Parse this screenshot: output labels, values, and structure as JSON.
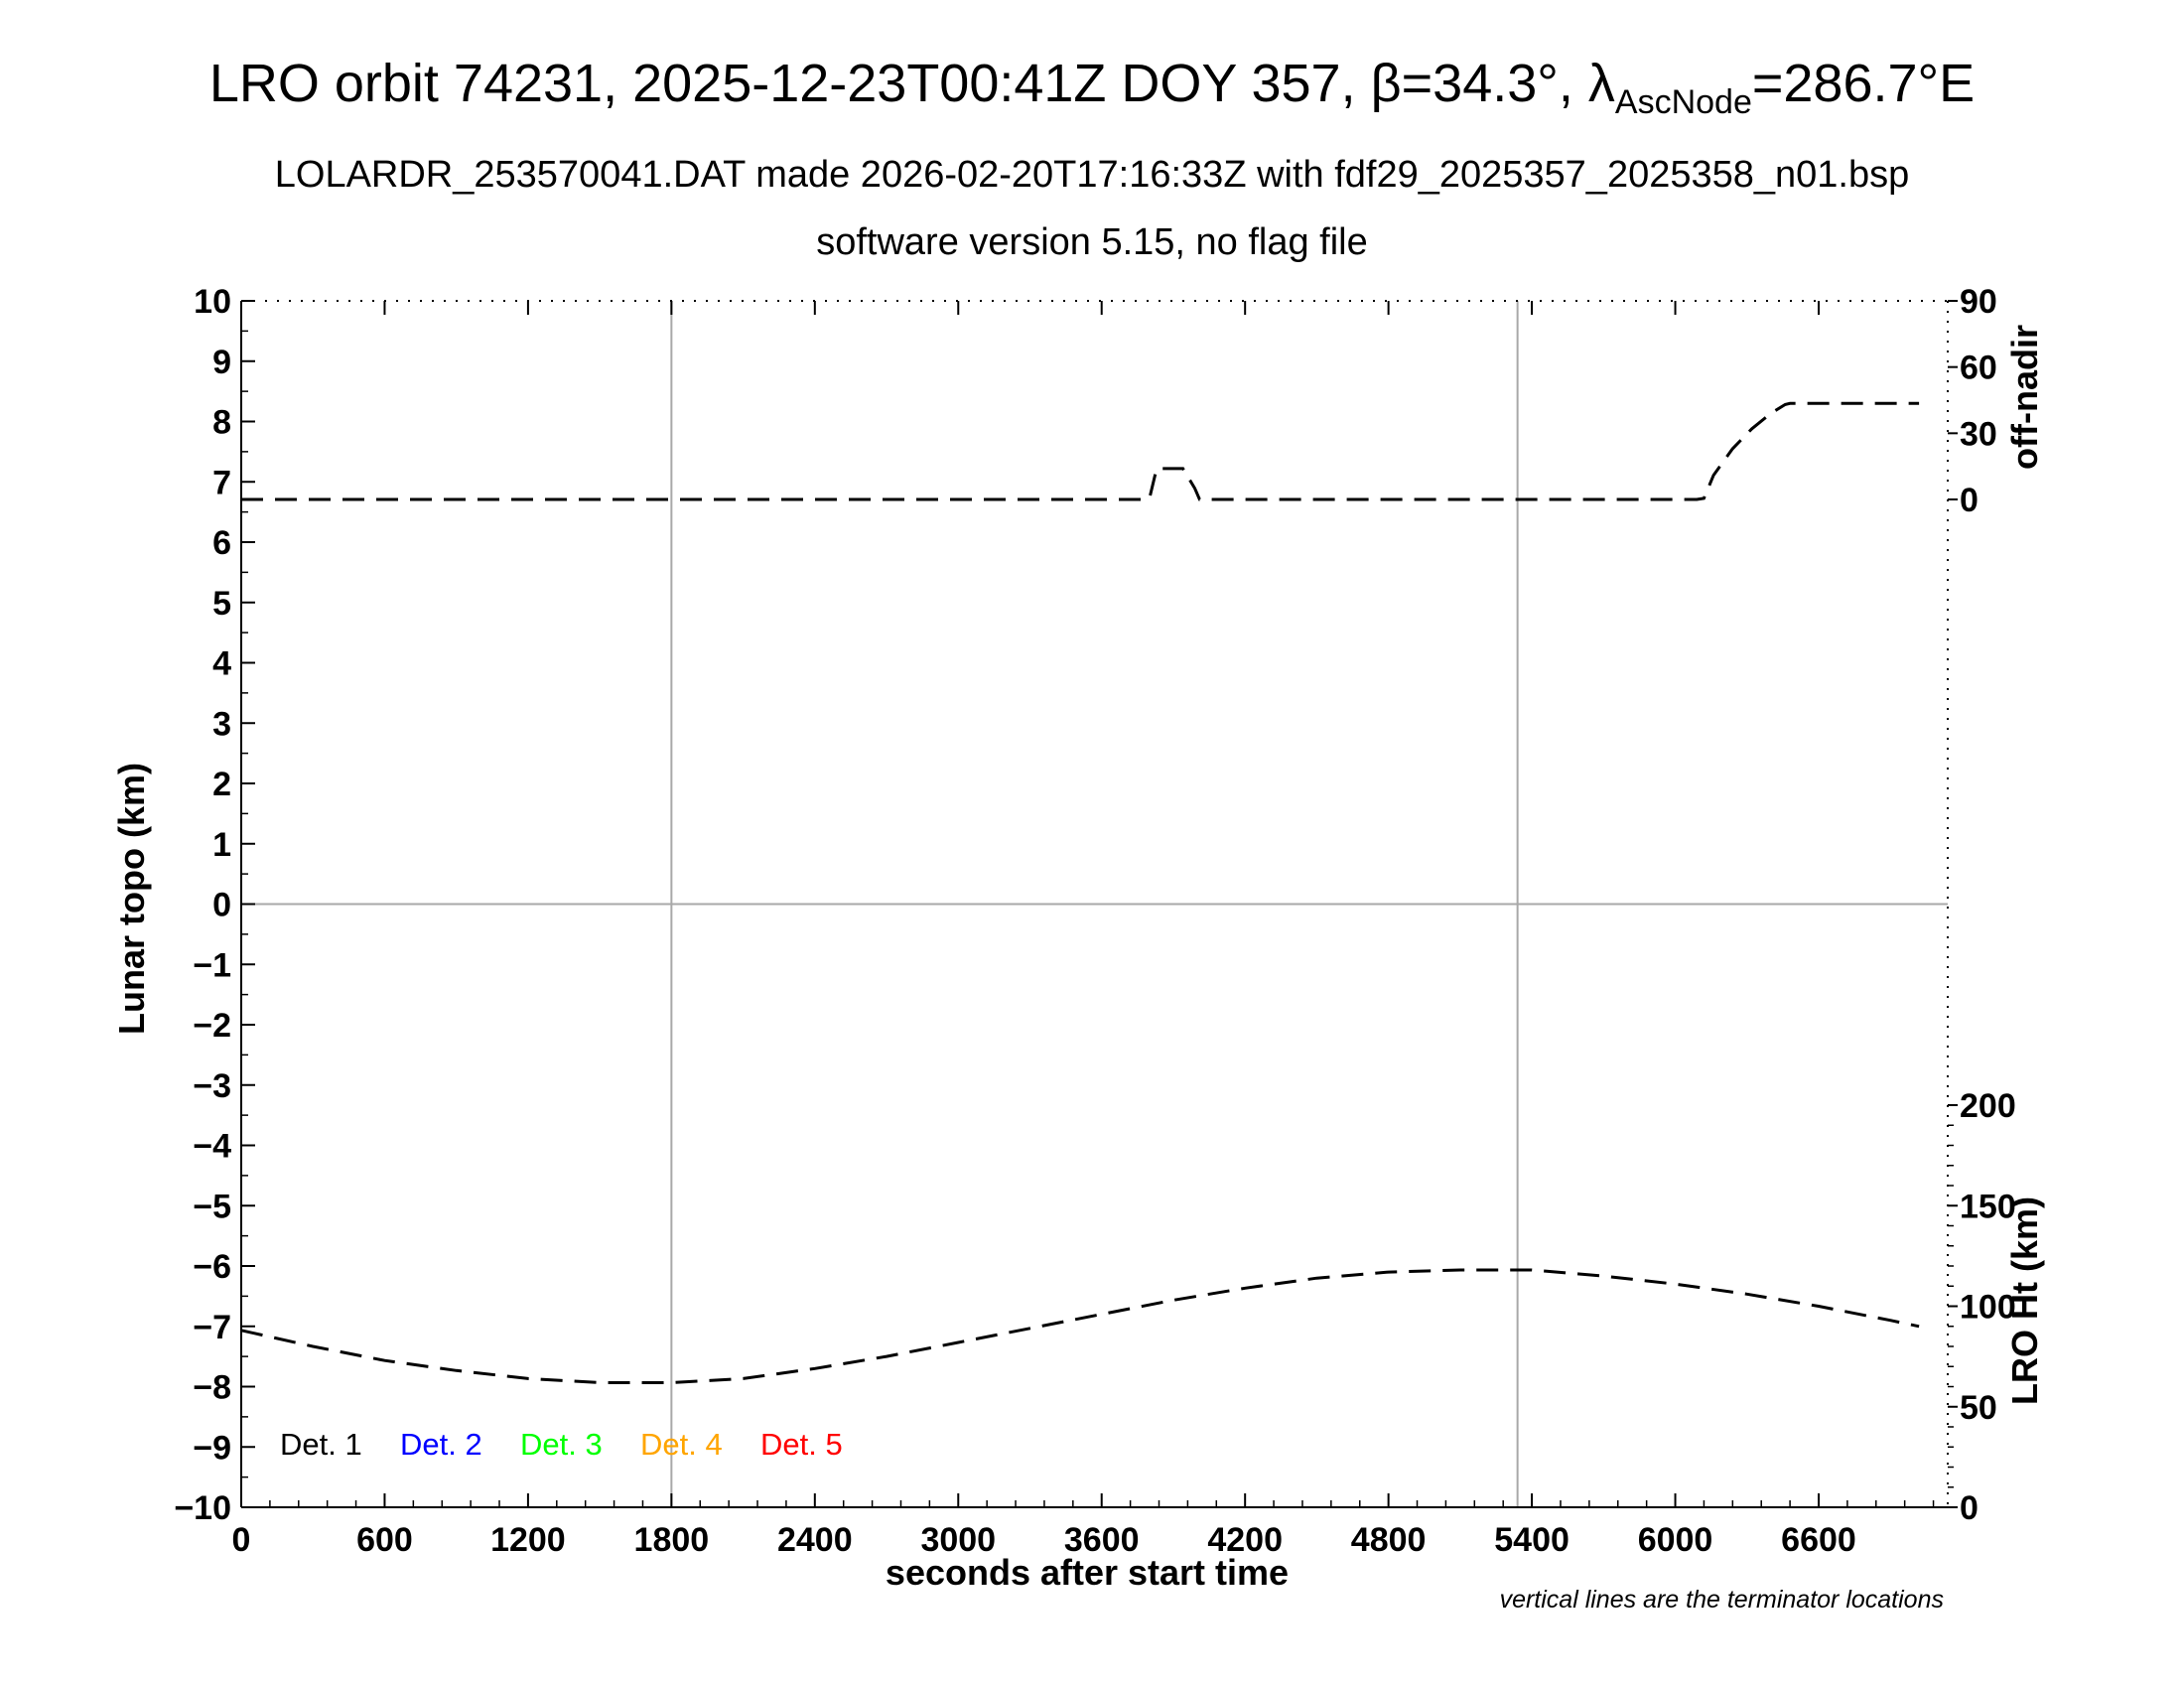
{
  "chart_data": {
    "type": "line",
    "title": {
      "pre": "LRO orbit 74231, 2025-12-23T00:41Z DOY 357, ",
      "beta_symbol": "β",
      "beta_text": "=34.3°, ",
      "lambda_symbol": "λ",
      "lambda_sub": "AscNode",
      "lambda_text": "=286.7°E"
    },
    "subtitle_1": "LOLARDR_253570041.DAT made 2026-02-20T17:16:33Z with fdf29_2025357_2025358_n01.bsp",
    "subtitle_2": "software version 5.15, no flag file",
    "xlabel": "seconds after start time",
    "ylabel_left": "Lunar topo (km)",
    "ylabel_right_top": "off-nadir",
    "ylabel_right_bottom": "LRO Ht (km)",
    "note": "vertical lines are the terminator locations",
    "xlim": [
      0,
      7140
    ],
    "ylim": [
      -10,
      10
    ],
    "x_ticks": [
      0,
      600,
      1200,
      1800,
      2400,
      3000,
      3600,
      4200,
      4800,
      5400,
      6000,
      6600
    ],
    "x_tick_labels": [
      "0",
      "600",
      "1200",
      "1800",
      "2400",
      "3000",
      "3600",
      "4200",
      "4800",
      "5400",
      "6000",
      "6600"
    ],
    "y_ticks": [
      10,
      9,
      8,
      7,
      6,
      5,
      4,
      3,
      2,
      1,
      0,
      -1,
      -2,
      -3,
      -4,
      -5,
      -6,
      -7,
      -8,
      -9,
      -10
    ],
    "y_tick_labels": [
      "10",
      "9",
      "8",
      "7",
      "6",
      "5",
      "4",
      "3",
      "2",
      "1",
      "0",
      "−1",
      "−2",
      "−3",
      "−4",
      "−5",
      "−6",
      "−7",
      "−8",
      "−9",
      "−10"
    ],
    "right_top_axis": {
      "range_deg": [
        0,
        90
      ],
      "ticks": [
        0,
        30,
        60,
        90
      ],
      "tick_labels": [
        "0",
        "30",
        "60",
        "90"
      ]
    },
    "right_bottom_axis": {
      "range_km": [
        0,
        200
      ],
      "ticks": [
        0,
        50,
        100,
        150,
        200
      ],
      "tick_labels": [
        "0",
        "50",
        "100",
        "150",
        "200"
      ]
    },
    "terminator_lines_x": [
      1800,
      5340
    ],
    "horizontal_zero_line": true,
    "legend": [
      {
        "label": "Det. 1",
        "color": "#000000"
      },
      {
        "label": "Det. 2",
        "color": "#0000ff"
      },
      {
        "label": "Det. 3",
        "color": "#00ff00"
      },
      {
        "label": "Det. 4",
        "color": "#ffa500"
      },
      {
        "label": "Det. 5",
        "color": "#ff0000"
      }
    ],
    "legend_position": "bottom-left",
    "series": [
      {
        "axis": "right_top",
        "style": "dashed",
        "color": "#000000",
        "x": [
          0,
          3780,
          3800,
          3830,
          3940,
          3990,
          4010,
          6090,
          6120,
          6160,
          6240,
          6320,
          6400,
          6460,
          6480,
          7020
        ],
        "y": [
          0,
          0,
          0.5,
          14,
          14,
          5,
          0,
          0,
          0.5,
          11,
          23,
          32,
          39,
          43,
          43.5,
          43.5
        ]
      },
      {
        "axis": "right_bottom",
        "style": "dashed",
        "color": "#000000",
        "x": [
          0,
          300,
          600,
          900,
          1200,
          1500,
          1800,
          2100,
          2400,
          2700,
          3000,
          3300,
          3600,
          3900,
          4200,
          4500,
          4800,
          5100,
          5400,
          5700,
          6000,
          6300,
          6600,
          6900,
          7020
        ],
        "y": [
          88,
          80,
          73,
          68,
          64,
          62,
          62,
          64,
          69,
          75,
          82,
          89,
          96,
          103,
          109,
          114,
          117,
          118,
          118,
          115,
          111,
          106,
          100,
          93,
          90
        ]
      }
    ]
  }
}
